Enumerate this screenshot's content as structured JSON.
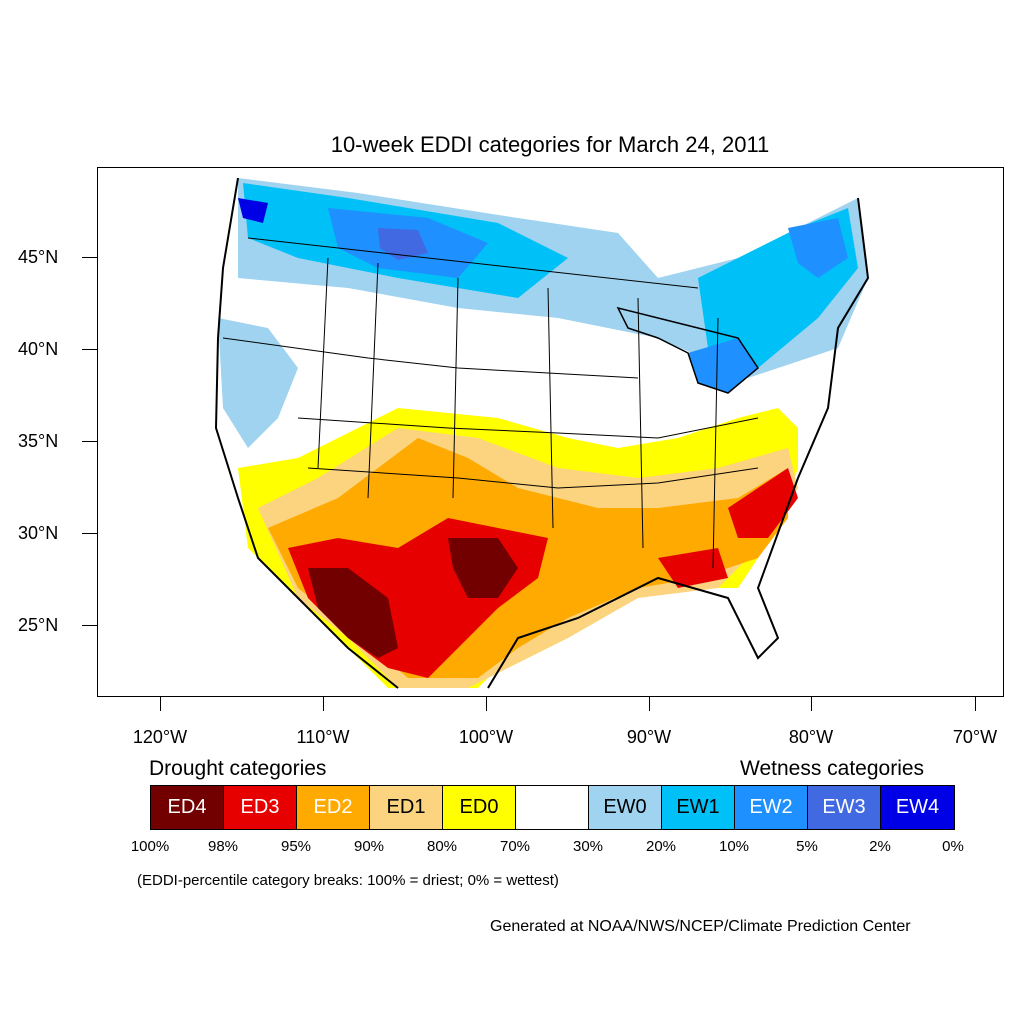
{
  "title": "10-week EDDI categories for March 24, 2011",
  "lat_labels": [
    "45°N",
    "40°N",
    "35°N",
    "30°N",
    "25°N"
  ],
  "lon_labels": [
    "120°W",
    "110°W",
    "100°W",
    "90°W",
    "80°W",
    "70°W"
  ],
  "legend": {
    "drought_title": "Drought categories",
    "wetness_title": "Wetness categories",
    "categories": [
      {
        "label": "ED4",
        "color": "#730000",
        "text_color": "#ffffff"
      },
      {
        "label": "ED3",
        "color": "#e60000",
        "text_color": "#ffffff"
      },
      {
        "label": "ED2",
        "color": "#ffaa00",
        "text_color": "#ffffff"
      },
      {
        "label": "ED1",
        "color": "#fcd37f",
        "text_color": "#000000"
      },
      {
        "label": "ED0",
        "color": "#ffff00",
        "text_color": "#000000"
      },
      {
        "label": "",
        "color": "#ffffff",
        "text_color": "#000000"
      },
      {
        "label": "EW0",
        "color": "#9fd3f0",
        "text_color": "#000000"
      },
      {
        "label": "EW1",
        "color": "#00c0f8",
        "text_color": "#000000"
      },
      {
        "label": "EW2",
        "color": "#1e90ff",
        "text_color": "#ffffff"
      },
      {
        "label": "EW3",
        "color": "#4169e1",
        "text_color": "#ffffff"
      },
      {
        "label": "EW4",
        "color": "#0000e6",
        "text_color": "#ffffff"
      }
    ],
    "breaks": [
      "100%",
      "98%",
      "95%",
      "90%",
      "80%",
      "70%",
      "30%",
      "20%",
      "10%",
      "5%",
      "2%",
      "0%"
    ]
  },
  "breaks_note": "(EDDI-percentile category breaks: 100% = driest; 0% = wettest)",
  "credit": "Generated at NOAA/NWS/NCEP/Climate Prediction Center"
}
